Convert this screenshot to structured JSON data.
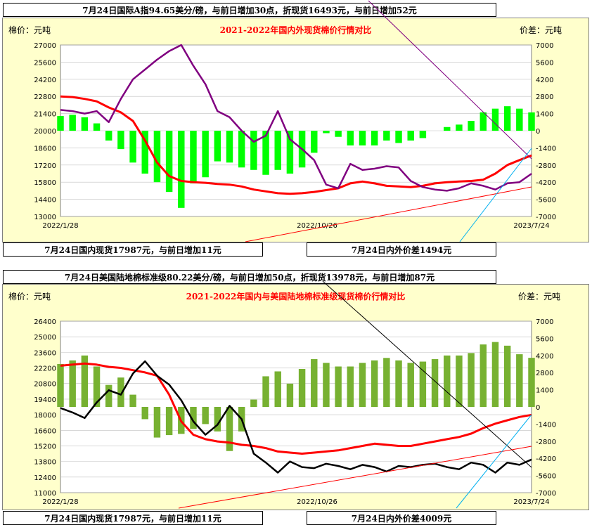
{
  "boxes": {
    "top_header": "7月24日国际A指94.65美分/磅，与前日增加30点，折现货16493元，与前日增加52元",
    "mid_header": "7月24日美国陆地棉标准级80.22美分/磅，与前日增加50点，折现货13978元，与前日增加87元",
    "chart1_left_footer": "7月24日国内现货17987元，与前日增加11元",
    "chart1_right_footer": "7月24日内外价差1494元",
    "chart2_left_footer": "7月24日国内现货17987元，与前日增加11元",
    "chart2_right_footer": "7月24日内外价差4009元"
  },
  "chart_data": [
    {
      "type": "line",
      "title": "2021-2022年国内外现货棉价行情对比",
      "ylabel": "棉价：元吨",
      "ylabel_right": "价差：元吨",
      "ylim": [
        13000,
        27000
      ],
      "yticks": [
        27000,
        25600,
        24200,
        22800,
        21400,
        20000,
        18600,
        17200,
        15800,
        14400,
        13000
      ],
      "y2lim": [
        -7000,
        7000
      ],
      "y2ticks": [
        7000,
        5600,
        4200,
        2800,
        1400,
        0,
        -1400,
        -2800,
        -4200,
        -5600,
        -7000
      ],
      "x_labels": [
        "2022/1/28",
        "2022/10/26",
        "2023/7/24"
      ],
      "grid": true,
      "series": [
        {
          "name": "",
          "axis": "left",
          "color": "#ff0000",
          "values": [
            22800,
            22750,
            22600,
            22400,
            21900,
            21500,
            20800,
            19200,
            17400,
            16300,
            15900,
            15800,
            15750,
            15650,
            15600,
            15450,
            15200,
            15050,
            14900,
            14850,
            14900,
            15000,
            15150,
            15300,
            15700,
            15850,
            15700,
            15500,
            15450,
            15400,
            15500,
            15700,
            15800,
            15850,
            15900,
            16000,
            16500,
            17200,
            17600,
            17987
          ]
        },
        {
          "name": "",
          "axis": "left",
          "color": "#800080",
          "values": [
            21700,
            21600,
            21400,
            21600,
            20700,
            22600,
            24200,
            25000,
            25800,
            26500,
            27000,
            25300,
            23800,
            21600,
            21100,
            20000,
            19100,
            19600,
            21600,
            19300,
            18500,
            17600,
            15600,
            15300,
            17300,
            16800,
            16900,
            17100,
            17000,
            15900,
            15400,
            15200,
            15100,
            15300,
            15700,
            15500,
            15200,
            15700,
            15800,
            16493
          ]
        },
        {
          "name": "",
          "axis": "right",
          "color": "#00ff00",
          "type": "bar",
          "values": [
            1200,
            1300,
            1100,
            600,
            -800,
            -1500,
            -2600,
            -3500,
            -4200,
            -5000,
            -6300,
            -4300,
            -3800,
            -2500,
            -2600,
            -3000,
            -3200,
            -3600,
            -3200,
            -3500,
            -3000,
            -1800,
            -200,
            -500,
            -1200,
            -1200,
            -1200,
            -800,
            -1000,
            -800,
            -600,
            0,
            300,
            500,
            800,
            1500,
            1800,
            2000,
            1800,
            1494
          ]
        }
      ]
    },
    {
      "type": "line",
      "title": "2021-2022年国内与美国陆地棉标准级现货棉价行情对比",
      "ylabel": "棉价：元吨",
      "ylabel_right": "价差：元吨",
      "ylim": [
        11000,
        26400
      ],
      "yticks": [
        26400,
        25000,
        23600,
        22200,
        20800,
        19400,
        18000,
        16600,
        15200,
        13800,
        12400,
        11000
      ],
      "y2lim": [
        -7000,
        7000
      ],
      "y2ticks": [
        7000,
        5600,
        4200,
        2800,
        1400,
        0,
        -1400,
        -2800,
        -4200,
        -5600,
        -7000
      ],
      "x_labels": [
        "2022/1/28",
        "2022/10/26",
        "2023/7/24"
      ],
      "grid": true,
      "series": [
        {
          "name": "",
          "axis": "left",
          "color": "#ff0000",
          "values": [
            22400,
            22500,
            22600,
            22500,
            22300,
            22200,
            22000,
            21800,
            21500,
            19800,
            17400,
            16200,
            15800,
            15600,
            15500,
            15300,
            15200,
            15000,
            14700,
            14600,
            14500,
            14600,
            14700,
            14800,
            15000,
            15200,
            15400,
            15300,
            15200,
            15200,
            15400,
            15600,
            15800,
            16000,
            16300,
            16800,
            17200,
            17500,
            17800,
            17987
          ]
        },
        {
          "name": "",
          "axis": "left",
          "color": "#000000",
          "values": [
            18600,
            18200,
            17700,
            19100,
            20200,
            19800,
            21700,
            22800,
            21500,
            20700,
            19300,
            17400,
            16200,
            17100,
            18800,
            17600,
            14500,
            13700,
            12800,
            13800,
            13300,
            13200,
            13600,
            13400,
            13100,
            13500,
            13300,
            12900,
            13400,
            13300,
            13500,
            13600,
            13300,
            13100,
            13700,
            13500,
            12800,
            13700,
            13500,
            13978
          ]
        },
        {
          "name": "",
          "axis": "right",
          "color": "#77b131",
          "type": "bar",
          "values": [
            3500,
            3800,
            4200,
            3300,
            1800,
            2400,
            1000,
            -1000,
            -2500,
            -2300,
            -2200,
            -1800,
            -1400,
            -2000,
            -3600,
            -2000,
            600,
            2500,
            2900,
            1900,
            3100,
            3900,
            3600,
            3300,
            3300,
            3600,
            3800,
            4000,
            3800,
            3600,
            3700,
            3900,
            4200,
            4200,
            4400,
            5100,
            5300,
            5000,
            4300,
            4009
          ]
        }
      ]
    }
  ]
}
